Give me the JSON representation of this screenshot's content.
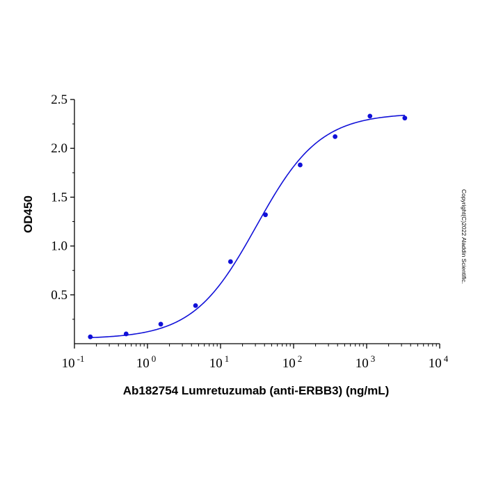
{
  "chart_data": {
    "type": "scatter",
    "xlabel": "Ab182754 Lumretuzumab (anti-ERBB3) (ng/mL)",
    "ylabel": "OD450",
    "x_scale": "log",
    "xlim": [
      0.1,
      10000
    ],
    "ylim": [
      0,
      2.5
    ],
    "x_ticks": [
      {
        "base": "10",
        "exp": "-1",
        "value": 0.1
      },
      {
        "base": "10",
        "exp": "0",
        "value": 1
      },
      {
        "base": "10",
        "exp": "1",
        "value": 10
      },
      {
        "base": "10",
        "exp": "2",
        "value": 100
      },
      {
        "base": "10",
        "exp": "3",
        "value": 1000
      },
      {
        "base": "10",
        "exp": "4",
        "value": 10000
      }
    ],
    "y_ticks": [
      {
        "label": "0.5",
        "value": 0.5
      },
      {
        "label": "1.0",
        "value": 1.0
      },
      {
        "label": "1.5",
        "value": 1.5
      },
      {
        "label": "2.0",
        "value": 2.0
      },
      {
        "label": "2.5",
        "value": 2.5
      }
    ],
    "grid": false,
    "series": [
      {
        "color": "#1010d8",
        "x": [
          0.165,
          0.51,
          1.52,
          4.55,
          13.7,
          41.2,
          123,
          370,
          1110,
          3330
        ],
        "y": [
          0.07,
          0.1,
          0.2,
          0.39,
          0.84,
          1.32,
          1.83,
          2.12,
          2.33,
          2.31
        ]
      }
    ],
    "fit_curve": {
      "model": "4PL",
      "bottom": 0.05,
      "top": 2.36,
      "ec50": 31,
      "hill": 1.0,
      "x_range": [
        0.165,
        3330
      ],
      "color": "#1010d8"
    }
  },
  "copyright": "Copyright(C)2022 Aladdin Scientific."
}
